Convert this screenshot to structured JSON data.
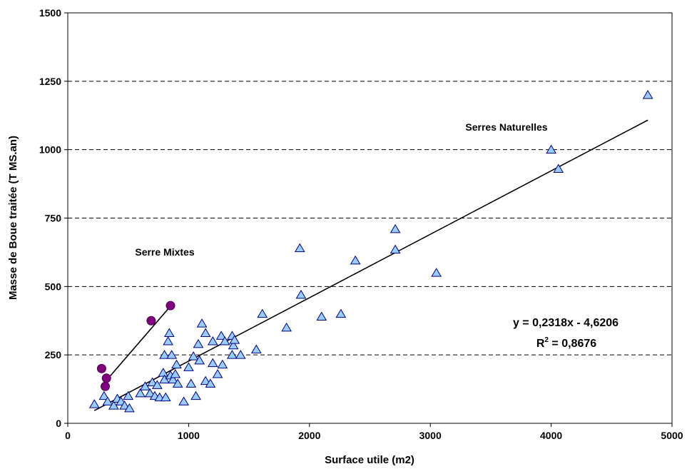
{
  "chart_data": {
    "type": "scatter",
    "xlabel": "Surface utile (m2)",
    "ylabel": "Masse de Boue traitée (T MS.an)",
    "xlim": [
      0,
      5000
    ],
    "ylim": [
      0,
      1500
    ],
    "xticks": [
      0,
      1000,
      2000,
      3000,
      4000,
      5000
    ],
    "yticks": [
      0,
      250,
      500,
      750,
      1000,
      1250,
      1500
    ],
    "xtick_labels": [
      "0",
      "1000",
      "2000",
      "3000",
      "4000",
      "5000"
    ],
    "ytick_labels": [
      "0",
      "250",
      "500",
      "750",
      "1000",
      "1250",
      "1500"
    ],
    "grid": "horizontal dashed",
    "annotations": {
      "serres_naturelles": "Serres Naturelles",
      "serre_mixtes": "Serre Mixtes",
      "equation": "y = 0,2318x - 4,6206",
      "r2_prefix": "R",
      "r2_sup": "2",
      "r2_value": " = 0,8676"
    },
    "series": [
      {
        "marker": "triangle",
        "color": "#99ccff",
        "trendline": {
          "x": [
            220,
            4800
          ],
          "y": [
            46.4,
            1108
          ]
        },
        "points": [
          [
            220,
            70
          ],
          [
            300,
            100
          ],
          [
            330,
            80
          ],
          [
            380,
            65
          ],
          [
            410,
            90
          ],
          [
            440,
            80
          ],
          [
            470,
            65
          ],
          [
            500,
            100
          ],
          [
            510,
            55
          ],
          [
            600,
            110
          ],
          [
            640,
            135
          ],
          [
            680,
            110
          ],
          [
            700,
            150
          ],
          [
            720,
            100
          ],
          [
            740,
            140
          ],
          [
            760,
            95
          ],
          [
            790,
            185
          ],
          [
            800,
            160
          ],
          [
            810,
            95
          ],
          [
            800,
            250
          ],
          [
            830,
            300
          ],
          [
            840,
            330
          ],
          [
            850,
            175
          ],
          [
            860,
            250
          ],
          [
            870,
            160
          ],
          [
            890,
            180
          ],
          [
            900,
            215
          ],
          [
            910,
            145
          ],
          [
            960,
            80
          ],
          [
            1000,
            205
          ],
          [
            1020,
            145
          ],
          [
            1040,
            245
          ],
          [
            1060,
            100
          ],
          [
            1080,
            290
          ],
          [
            1090,
            230
          ],
          [
            1110,
            365
          ],
          [
            1140,
            330
          ],
          [
            1140,
            155
          ],
          [
            1180,
            145
          ],
          [
            1200,
            220
          ],
          [
            1200,
            300
          ],
          [
            1240,
            180
          ],
          [
            1270,
            320
          ],
          [
            1280,
            215
          ],
          [
            1300,
            300
          ],
          [
            1360,
            250
          ],
          [
            1360,
            320
          ],
          [
            1370,
            285
          ],
          [
            1380,
            305
          ],
          [
            1430,
            250
          ],
          [
            1560,
            270
          ],
          [
            1610,
            400
          ],
          [
            1810,
            350
          ],
          [
            1920,
            640
          ],
          [
            1930,
            470
          ],
          [
            2100,
            390
          ],
          [
            2260,
            400
          ],
          [
            2380,
            595
          ],
          [
            2710,
            710
          ],
          [
            2710,
            635
          ],
          [
            3050,
            550
          ],
          [
            4000,
            1000
          ],
          [
            4060,
            930
          ],
          [
            4800,
            1200
          ]
        ]
      },
      {
        "marker": "circle",
        "color": "#800080",
        "trendline": {
          "x": [
            310,
            850
          ],
          "y": [
            152,
            428
          ]
        },
        "points": [
          [
            280,
            200
          ],
          [
            310,
            135
          ],
          [
            320,
            165
          ],
          [
            690,
            375
          ],
          [
            850,
            430
          ]
        ]
      }
    ]
  }
}
